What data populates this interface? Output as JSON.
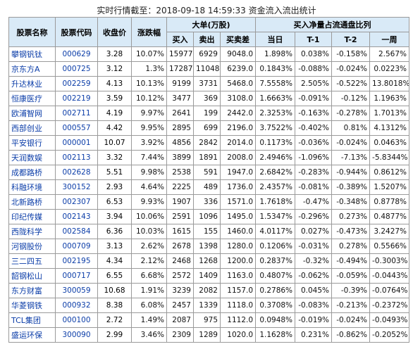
{
  "title": "实时行情截至：2018-09-18 14:59:33 资金流入流出统计",
  "headers": {
    "name": "股票名称",
    "code": "股票代码",
    "close": "收盘价",
    "change": "涨跌幅",
    "big_order": "大单(万股)",
    "buy": "买入",
    "sell": "卖出",
    "net": "买卖差",
    "ratio": "买入净量占流通盘比列",
    "today": "当日",
    "t1": "T-1",
    "t2": "T-2",
    "week": "一周"
  },
  "rows": [
    {
      "name": "攀钢钒钛",
      "code": "000629",
      "close": "3.28",
      "change": "10.07%",
      "buy": "15977",
      "sell": "6929",
      "net": "9048.0",
      "today": "1.898%",
      "t1": "0.038%",
      "t2": "-0.158%",
      "week": "2.567%"
    },
    {
      "name": "京东方A",
      "code": "000725",
      "close": "3.12",
      "change": "1.3%",
      "buy": "17287",
      "sell": "11048",
      "net": "6239.0",
      "today": "0.1843%",
      "t1": "-0.088%",
      "t2": "-0.024%",
      "week": "0.0223%"
    },
    {
      "name": "升达林业",
      "code": "002259",
      "close": "4.13",
      "change": "10.13%",
      "buy": "9199",
      "sell": "3731",
      "net": "5468.0",
      "today": "7.5558%",
      "t1": "2.505%",
      "t2": "-0.522%",
      "week": "13.8018%"
    },
    {
      "name": "恒康医疗",
      "code": "002219",
      "close": "3.59",
      "change": "10.12%",
      "buy": "3477",
      "sell": "369",
      "net": "3108.0",
      "today": "1.6663%",
      "t1": "-0.091%",
      "t2": "-0.12%",
      "week": "1.1963%"
    },
    {
      "name": "欧浦智网",
      "code": "002711",
      "close": "4.19",
      "change": "9.97%",
      "buy": "2641",
      "sell": "199",
      "net": "2442.0",
      "today": "2.3253%",
      "t1": "-0.163%",
      "t2": "-0.278%",
      "week": "1.7013%"
    },
    {
      "name": "西部创业",
      "code": "000557",
      "close": "4.42",
      "change": "9.95%",
      "buy": "2895",
      "sell": "699",
      "net": "2196.0",
      "today": "3.7522%",
      "t1": "-0.402%",
      "t2": "0.81%",
      "week": "4.1312%"
    },
    {
      "name": "平安银行",
      "code": "000001",
      "close": "10.07",
      "change": "3.92%",
      "buy": "4856",
      "sell": "2842",
      "net": "2014.0",
      "today": "0.1173%",
      "t1": "-0.036%",
      "t2": "-0.024%",
      "week": "0.0463%"
    },
    {
      "name": "天润数娱",
      "code": "002113",
      "close": "3.32",
      "change": "7.44%",
      "buy": "3899",
      "sell": "1891",
      "net": "2008.0",
      "today": "2.4946%",
      "t1": "-1.096%",
      "t2": "-7.13%",
      "week": "-5.8344%"
    },
    {
      "name": "成都路桥",
      "code": "002628",
      "close": "5.51",
      "change": "9.98%",
      "buy": "2538",
      "sell": "591",
      "net": "1947.0",
      "today": "2.6842%",
      "t1": "-0.283%",
      "t2": "-0.944%",
      "week": "0.8612%"
    },
    {
      "name": "科融环境",
      "code": "300152",
      "close": "2.93",
      "change": "4.64%",
      "buy": "2225",
      "sell": "489",
      "net": "1736.0",
      "today": "2.4357%",
      "t1": "-0.081%",
      "t2": "-0.389%",
      "week": "1.5207%"
    },
    {
      "name": "北新路桥",
      "code": "002307",
      "close": "6.53",
      "change": "9.93%",
      "buy": "1907",
      "sell": "336",
      "net": "1571.0",
      "today": "1.7618%",
      "t1": "-0.47%",
      "t2": "-0.348%",
      "week": "0.8778%"
    },
    {
      "name": "印纪传媒",
      "code": "002143",
      "close": "3.94",
      "change": "10.06%",
      "buy": "2591",
      "sell": "1096",
      "net": "1495.0",
      "today": "1.5347%",
      "t1": "-0.296%",
      "t2": "0.273%",
      "week": "0.4877%"
    },
    {
      "name": "西陇科学",
      "code": "002584",
      "close": "6.36",
      "change": "10.03%",
      "buy": "1615",
      "sell": "155",
      "net": "1460.0",
      "today": "4.0117%",
      "t1": "0.027%",
      "t2": "-0.473%",
      "week": "3.2427%"
    },
    {
      "name": "河钢股份",
      "code": "000709",
      "close": "3.13",
      "change": "2.62%",
      "buy": "2678",
      "sell": "1398",
      "net": "1280.0",
      "today": "0.1206%",
      "t1": "-0.031%",
      "t2": "0.278%",
      "week": "0.5566%"
    },
    {
      "name": "三二四五",
      "code": "002195",
      "close": "4.34",
      "change": "2.12%",
      "buy": "2468",
      "sell": "1268",
      "net": "1200.0",
      "today": "0.2837%",
      "t1": "-0.32%",
      "t2": "-0.494%",
      "week": "-0.3003%"
    },
    {
      "name": "韶钢松山",
      "code": "000717",
      "close": "6.55",
      "change": "6.68%",
      "buy": "2572",
      "sell": "1409",
      "net": "1163.0",
      "today": "0.4807%",
      "t1": "-0.062%",
      "t2": "-0.059%",
      "week": "-0.0443%"
    },
    {
      "name": "东方财富",
      "code": "300059",
      "close": "10.68",
      "change": "1.91%",
      "buy": "3239",
      "sell": "2082",
      "net": "1157.0",
      "today": "0.2786%",
      "t1": "0.045%",
      "t2": "-0.39%",
      "week": "-0.0764%"
    },
    {
      "name": "华菱钢铁",
      "code": "000932",
      "close": "8.38",
      "change": "6.08%",
      "buy": "2457",
      "sell": "1339",
      "net": "1118.0",
      "today": "0.3708%",
      "t1": "-0.083%",
      "t2": "-0.213%",
      "week": "-0.2372%"
    },
    {
      "name": "TCL集团",
      "code": "000100",
      "close": "2.72",
      "change": "1.49%",
      "buy": "2087",
      "sell": "975",
      "net": "1112.0",
      "today": "0.0948%",
      "t1": "-0.019%",
      "t2": "-0.024%",
      "week": "-0.0493%"
    },
    {
      "name": "盛运环保",
      "code": "300090",
      "close": "2.99",
      "change": "3.46%",
      "buy": "2309",
      "sell": "1289",
      "net": "1020.0",
      "today": "1.1628%",
      "t1": "0.231%",
      "t2": "-0.862%",
      "week": "-0.2052%"
    }
  ]
}
